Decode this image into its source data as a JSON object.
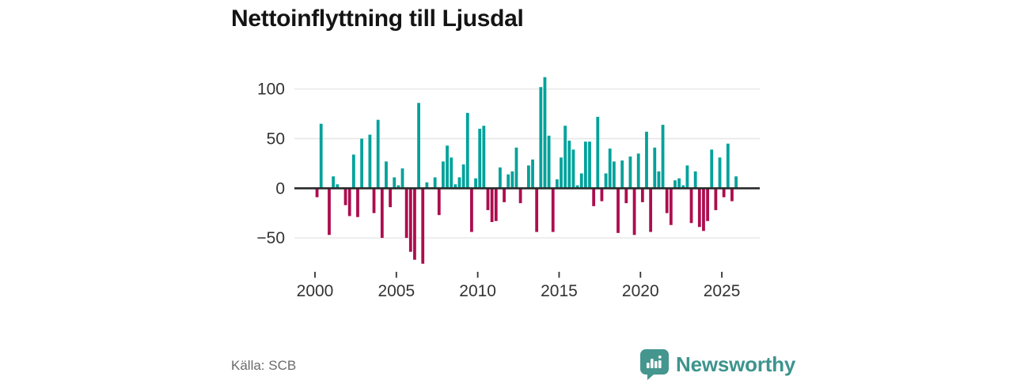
{
  "title": "Nettoinflyttning till Ljusdal",
  "source": "Källa: SCB",
  "brand": {
    "name": "Newsworthy",
    "icon": "newsworthy-speech-bubble-chart-icon",
    "icon_color": "#44968f",
    "text_color": "#3d948d"
  },
  "colors": {
    "positive": "#00a29b",
    "negative": "#ad0d4f",
    "zero_line": "#2b2b2b",
    "gridline": "#e6e6e6",
    "axis_text": "#333333",
    "title_text": "#141414",
    "source_text": "#6b6b6b",
    "background": "#ffffff"
  },
  "chart_data": {
    "type": "bar",
    "title": "Nettoinflyttning till Ljusdal",
    "interval": "quarterly",
    "x_range": "2000 Q1 – 2025 Q4",
    "x_start_year": 2000,
    "x_tick_labels": [
      "2000",
      "2005",
      "2010",
      "2015",
      "2020",
      "2025"
    ],
    "y_ticks": [
      100,
      50,
      0,
      -50
    ],
    "y_tick_labels": [
      "100",
      "50",
      "0",
      "−50"
    ],
    "ylim": [
      -80,
      115
    ],
    "grid": "horizontal",
    "legend": "none",
    "values": [
      -9,
      65,
      0,
      -47,
      12,
      4,
      0,
      -17,
      -28,
      34,
      -29,
      50,
      0,
      54,
      -25,
      69,
      -50,
      27,
      -19,
      11,
      3,
      20,
      -50,
      -64,
      -72,
      86,
      -76,
      6,
      0,
      11,
      -27,
      27,
      43,
      31,
      4,
      11,
      24,
      76,
      -44,
      10,
      60,
      63,
      -22,
      -34,
      -33,
      21,
      -14,
      14,
      17,
      41,
      -15,
      0,
      23,
      29,
      -44,
      102,
      112,
      53,
      -44,
      9,
      31,
      63,
      48,
      39,
      3,
      15,
      47,
      47,
      -18,
      72,
      -13,
      15,
      40,
      27,
      -45,
      28,
      -15,
      32,
      -47,
      35,
      -14,
      57,
      -44,
      41,
      17,
      64,
      -25,
      -37,
      8,
      10,
      3,
      23,
      -35,
      17,
      -39,
      -43,
      -33,
      39,
      -22,
      31,
      -9,
      45,
      -13,
      12
    ]
  }
}
